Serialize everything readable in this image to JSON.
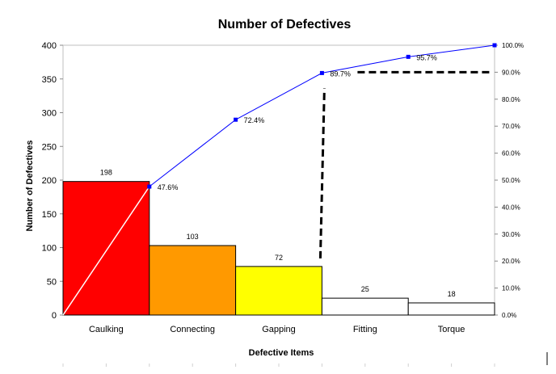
{
  "chart_data": {
    "type": "bar",
    "title": "Number of Defectives",
    "xlabel": "Defective Items",
    "ylabel": "Number of Defectives",
    "categories": [
      "Caulking",
      "Connecting",
      "Gapping",
      "Fitting",
      "Torque"
    ],
    "values": [
      198,
      103,
      72,
      25,
      18
    ],
    "value_labels": [
      "198",
      "103",
      "72",
      "25",
      "18"
    ],
    "bar_colors": [
      "#ff0000",
      "#ff9900",
      "#ffff00",
      "#ffffff",
      "#ffffff"
    ],
    "ylim": [
      0,
      400
    ],
    "yticks": [
      0,
      50,
      100,
      150,
      200,
      250,
      300,
      350,
      400
    ],
    "secondary_axis": {
      "ylim": [
        0,
        100
      ],
      "ticks": [
        "0.0%",
        "10.0%",
        "20.0%",
        "30.0%",
        "40.0%",
        "50.0%",
        "60.0%",
        "70.0%",
        "80.0%",
        "90.0%",
        "100.0%"
      ]
    },
    "cumulative_series": {
      "values": [
        47.6,
        72.4,
        89.7,
        95.7,
        100.0
      ],
      "labels": [
        "47.6%",
        "72.4%",
        "89.7%",
        "95.7%",
        ""
      ],
      "color": "#0000ff"
    },
    "reference_lines": [
      {
        "style": "dashed",
        "color": "#000000",
        "from": {
          "x": "Gapping",
          "y_percent": 21
        },
        "to": {
          "x": "Gapping",
          "y_percent": 84
        }
      },
      {
        "style": "dashed",
        "color": "#000000",
        "from": {
          "x": "Gapping",
          "y_percent": 90
        },
        "to": {
          "x": "Torque",
          "y_percent": 90
        }
      }
    ],
    "diagonal_line": {
      "color": "#ffffff",
      "category": "Caulking"
    },
    "legend": "none",
    "grid": false
  }
}
